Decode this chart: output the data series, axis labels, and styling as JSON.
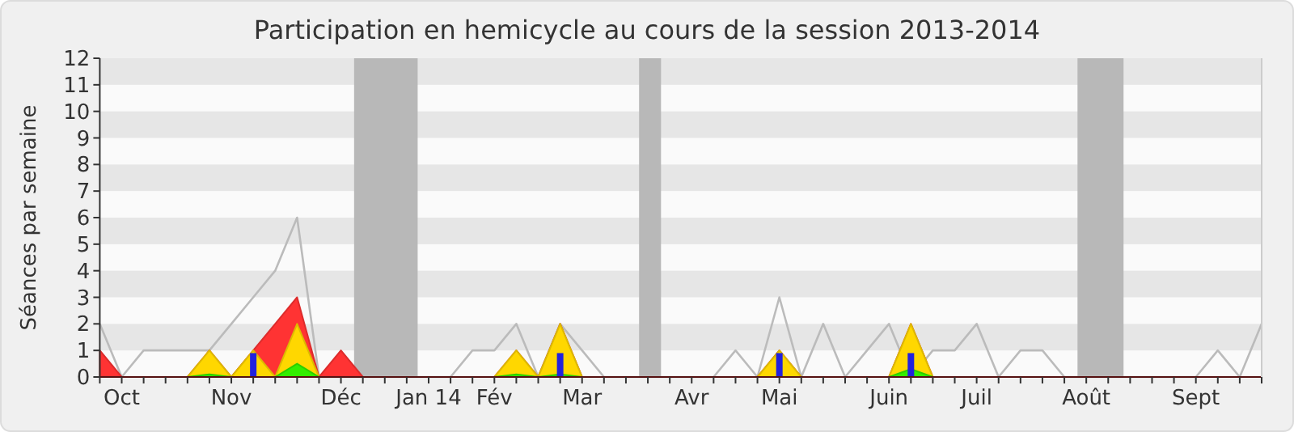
{
  "chart_data": {
    "type": "area",
    "title": "Participation en hemicycle au cours de la session 2013-2014",
    "ylabel": "Séances par semaine",
    "categories": [
      null,
      "Oct",
      null,
      null,
      null,
      null,
      "Nov",
      null,
      null,
      null,
      null,
      "Déc",
      null,
      null,
      null,
      "Jan 14",
      null,
      null,
      "Fév",
      null,
      null,
      null,
      "Mar",
      null,
      null,
      null,
      null,
      "Avr",
      null,
      null,
      null,
      "Mai",
      null,
      null,
      null,
      null,
      "Juin",
      null,
      null,
      null,
      "Juil",
      null,
      null,
      null,
      null,
      "Août",
      null,
      null,
      null,
      null,
      "Sept",
      null,
      null,
      null
    ],
    "series": [
      {
        "type": "line",
        "color": "#bbbbbb",
        "values": [
          2,
          0,
          1,
          1,
          1,
          1,
          2,
          3,
          4,
          6,
          0,
          0,
          0,
          0,
          0,
          0,
          0,
          1,
          1,
          2,
          0,
          2,
          1,
          0,
          0,
          0,
          0,
          0,
          0,
          1,
          0,
          3,
          0,
          2,
          0,
          1,
          2,
          0,
          1,
          1,
          2,
          0,
          1,
          1,
          0,
          0,
          0,
          0,
          0,
          0,
          0,
          1,
          0,
          2
        ]
      },
      {
        "color": "#ff3333",
        "values": [
          1,
          0,
          0,
          0,
          0,
          1,
          0,
          1,
          2,
          3,
          0,
          1,
          0,
          0,
          0,
          0,
          0,
          0,
          0,
          1,
          0,
          2,
          0,
          0,
          0,
          0,
          0,
          0,
          0,
          0,
          0,
          1,
          0,
          0,
          0,
          0,
          0,
          2,
          0,
          0,
          0,
          0,
          0,
          0,
          0,
          0,
          0,
          0,
          0,
          0,
          0,
          0,
          0,
          0
        ]
      },
      {
        "color": "#ffd700",
        "values": [
          0,
          0,
          0,
          0,
          0,
          1,
          0,
          1,
          0,
          2,
          0,
          0,
          0,
          0,
          0,
          0,
          0,
          0,
          0,
          1,
          0,
          2,
          0,
          0,
          0,
          0,
          0,
          0,
          0,
          0,
          0,
          1,
          0,
          0,
          0,
          0,
          0,
          2,
          0,
          0,
          0,
          0,
          0,
          0,
          0,
          0,
          0,
          0,
          0,
          0,
          0,
          0,
          0,
          0
        ]
      },
      {
        "color": "#33ee00",
        "values": [
          0,
          0,
          0,
          0,
          0,
          0.1,
          0,
          0,
          0,
          0.5,
          0,
          0,
          0,
          0,
          0,
          0,
          0,
          0,
          0,
          0.1,
          0,
          0.1,
          0,
          0,
          0,
          0,
          0,
          0,
          0,
          0,
          0,
          0,
          0,
          0,
          0,
          0,
          0,
          0.3,
          0,
          0,
          0,
          0,
          0,
          0,
          0,
          0,
          0,
          0,
          0,
          0,
          0,
          0,
          0,
          0
        ]
      },
      {
        "type": "bar",
        "color": "#2222dd",
        "values": [
          null,
          null,
          null,
          null,
          null,
          null,
          null,
          0.9,
          null,
          null,
          null,
          null,
          null,
          null,
          null,
          null,
          null,
          null,
          null,
          null,
          null,
          0.9,
          null,
          null,
          null,
          null,
          null,
          null,
          null,
          null,
          null,
          0.9,
          null,
          null,
          null,
          null,
          null,
          0.9,
          null,
          null,
          null,
          null,
          null,
          null,
          null,
          null,
          null,
          null,
          null,
          null,
          null,
          null,
          null,
          null
        ]
      }
    ],
    "ylim": [
      0,
      12
    ],
    "yticks": [
      0,
      1,
      2,
      3,
      4,
      5,
      6,
      7,
      8,
      9,
      10,
      11,
      12
    ]
  }
}
